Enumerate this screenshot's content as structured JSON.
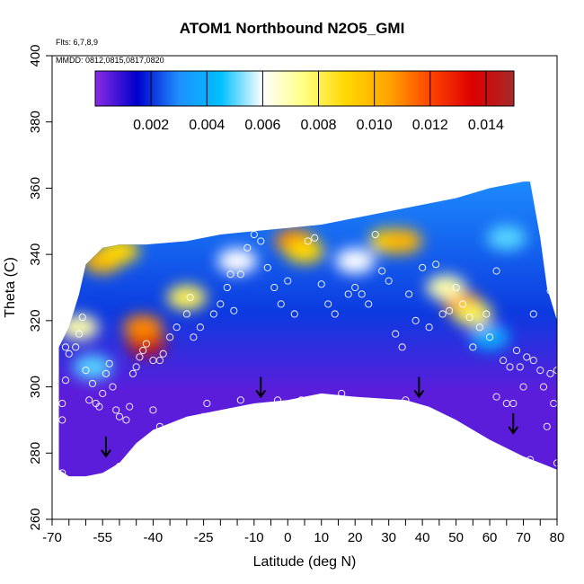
{
  "chart_data": {
    "type": "heatmap",
    "title": "ATOM1 Northbound N2O5_GMI",
    "notes": {
      "flights": "Flts: 6,7,8,9",
      "dates": "MMDD: 0812,0815,0817,0820"
    },
    "xlabel": "Latitude (deg N)",
    "ylabel": "Theta (C)",
    "xlim": [
      -70,
      80
    ],
    "ylim": [
      260,
      400
    ],
    "x_ticks": [
      -70,
      -55,
      -40,
      -25,
      -10,
      0,
      10,
      20,
      30,
      40,
      50,
      60,
      70,
      80
    ],
    "x_minor_ticks": [
      -65,
      -60,
      -50,
      -45,
      -35,
      -30,
      -20,
      -15,
      -5,
      5,
      15,
      25,
      35,
      45,
      55,
      65,
      75
    ],
    "y_ticks": [
      260,
      280,
      300,
      320,
      340,
      360,
      380,
      400
    ],
    "grid": false,
    "colorbar": {
      "placement": "top",
      "range": [
        0.0,
        0.015
      ],
      "tick_values": [
        0.002,
        0.004,
        0.006,
        0.008,
        0.01,
        0.012,
        0.014
      ],
      "tick_labels": [
        "0.002",
        "0.004",
        "0.006",
        "0.008",
        "0.010",
        "0.012",
        "0.014"
      ],
      "colors": [
        "#8a2be2",
        "#0000cc",
        "#1e90ff",
        "#00bfff",
        "#ffffff",
        "#ffff80",
        "#ffd700",
        "#ffa500",
        "#ff4500",
        "#dd0000",
        "#a52a2a"
      ]
    },
    "domain_outline": [
      [
        -68,
        275
      ],
      [
        -68,
        312
      ],
      [
        -65,
        318
      ],
      [
        -62,
        328
      ],
      [
        -60,
        337
      ],
      [
        -55,
        342
      ],
      [
        -50,
        343
      ],
      [
        -42,
        343
      ],
      [
        -30,
        344
      ],
      [
        -20,
        346
      ],
      [
        -10,
        347
      ],
      [
        0,
        348
      ],
      [
        10,
        349
      ],
      [
        20,
        351
      ],
      [
        30,
        353
      ],
      [
        40,
        355
      ],
      [
        50,
        357
      ],
      [
        60,
        360
      ],
      [
        70,
        362
      ],
      [
        72,
        362
      ],
      [
        75,
        345
      ],
      [
        77,
        330
      ],
      [
        80,
        320
      ],
      [
        80,
        275
      ],
      [
        75,
        277
      ],
      [
        70,
        279
      ],
      [
        60,
        284
      ],
      [
        50,
        290
      ],
      [
        42,
        294
      ],
      [
        35,
        296
      ],
      [
        20,
        297
      ],
      [
        10,
        298
      ],
      [
        0,
        296
      ],
      [
        -10,
        295
      ],
      [
        -20,
        293
      ],
      [
        -30,
        291
      ],
      [
        -40,
        287
      ],
      [
        -45,
        283
      ],
      [
        -50,
        277
      ],
      [
        -55,
        274
      ],
      [
        -60,
        273
      ],
      [
        -65,
        273
      ]
    ],
    "hotspots": [
      {
        "lat": -42,
        "theta": 313,
        "value": 0.014
      },
      {
        "lat": -43,
        "theta": 318,
        "value": 0.011
      },
      {
        "lat": -55,
        "theta": 338,
        "value": 0.01
      },
      {
        "lat": -50,
        "theta": 341,
        "value": 0.009
      },
      {
        "lat": -62,
        "theta": 318,
        "value": 0.007
      },
      {
        "lat": 2,
        "theta": 344,
        "value": 0.011
      },
      {
        "lat": 5,
        "theta": 341,
        "value": 0.009
      },
      {
        "lat": 30,
        "theta": 344,
        "value": 0.009
      },
      {
        "lat": 34,
        "theta": 344,
        "value": 0.01
      },
      {
        "lat": 52,
        "theta": 325,
        "value": 0.011
      },
      {
        "lat": 55,
        "theta": 322,
        "value": 0.008
      },
      {
        "lat": 47,
        "theta": 330,
        "value": 0.007
      },
      {
        "lat": -30,
        "theta": 327,
        "value": 0.008
      },
      {
        "lat": -15,
        "theta": 338,
        "value": 0.006
      },
      {
        "lat": 20,
        "theta": 338,
        "value": 0.006
      },
      {
        "lat": 65,
        "theta": 345,
        "value": 0.005
      },
      {
        "lat": -58,
        "theta": 306,
        "value": 0.005
      },
      {
        "lat": 60,
        "theta": 315,
        "value": 0.004
      }
    ],
    "background_upper": 0.003,
    "background_lower": 0.0005,
    "observations": [
      [
        -67,
        274
      ],
      [
        -67,
        290
      ],
      [
        -67,
        295
      ],
      [
        -66,
        302
      ],
      [
        -66,
        312
      ],
      [
        -65,
        310
      ],
      [
        -63,
        312
      ],
      [
        -62,
        316
      ],
      [
        -61,
        321
      ],
      [
        -60,
        305
      ],
      [
        -59,
        296
      ],
      [
        -58,
        301
      ],
      [
        -57,
        295
      ],
      [
        -56,
        294
      ],
      [
        -55,
        298
      ],
      [
        -54,
        304
      ],
      [
        -53,
        307
      ],
      [
        -52,
        300
      ],
      [
        -51,
        293
      ],
      [
        -50,
        291
      ],
      [
        -50,
        276
      ],
      [
        -48,
        277
      ],
      [
        -48,
        290
      ],
      [
        -47,
        294
      ],
      [
        -46,
        304
      ],
      [
        -45,
        306
      ],
      [
        -44,
        309
      ],
      [
        -43,
        311
      ],
      [
        -42,
        313
      ],
      [
        -40,
        308
      ],
      [
        -40,
        293
      ],
      [
        -38,
        308
      ],
      [
        -37,
        310
      ],
      [
        -38,
        288
      ],
      [
        -35,
        315
      ],
      [
        -33,
        318
      ],
      [
        -30,
        322
      ],
      [
        -29,
        327
      ],
      [
        -28,
        315
      ],
      [
        -26,
        318
      ],
      [
        -25,
        291
      ],
      [
        -24,
        295
      ],
      [
        -22,
        322
      ],
      [
        -20,
        325
      ],
      [
        -18,
        330
      ],
      [
        -17,
        334
      ],
      [
        -16,
        323
      ],
      [
        -14,
        334
      ],
      [
        -14,
        296
      ],
      [
        -12,
        342
      ],
      [
        -10,
        346
      ],
      [
        -8,
        344
      ],
      [
        -6,
        336
      ],
      [
        -4,
        330
      ],
      [
        -3,
        296
      ],
      [
        -2,
        325
      ],
      [
        0,
        332
      ],
      [
        2,
        322
      ],
      [
        4,
        296
      ],
      [
        6,
        344
      ],
      [
        8,
        345
      ],
      [
        10,
        331
      ],
      [
        12,
        325
      ],
      [
        14,
        322
      ],
      [
        16,
        298
      ],
      [
        18,
        328
      ],
      [
        20,
        330
      ],
      [
        22,
        328
      ],
      [
        24,
        325
      ],
      [
        26,
        346
      ],
      [
        28,
        335
      ],
      [
        30,
        332
      ],
      [
        32,
        316
      ],
      [
        34,
        312
      ],
      [
        35,
        296
      ],
      [
        36,
        328
      ],
      [
        38,
        320
      ],
      [
        40,
        336
      ],
      [
        42,
        318
      ],
      [
        44,
        337
      ],
      [
        46,
        322
      ],
      [
        48,
        323
      ],
      [
        50,
        330
      ],
      [
        52,
        325
      ],
      [
        54,
        321
      ],
      [
        55,
        312
      ],
      [
        57,
        318
      ],
      [
        59,
        322
      ],
      [
        60,
        315
      ],
      [
        62,
        335
      ],
      [
        64,
        308
      ],
      [
        65,
        295
      ],
      [
        66,
        306
      ],
      [
        68,
        311
      ],
      [
        69,
        306
      ],
      [
        70,
        300
      ],
      [
        71,
        309
      ],
      [
        72,
        278
      ],
      [
        73,
        308
      ],
      [
        74,
        276
      ],
      [
        75,
        305
      ],
      [
        76,
        300
      ],
      [
        77,
        288
      ],
      [
        78,
        304
      ],
      [
        78,
        329
      ],
      [
        79,
        295
      ],
      [
        80,
        277
      ],
      [
        80,
        305
      ],
      [
        77,
        345
      ],
      [
        76,
        360
      ],
      [
        73,
        322
      ],
      [
        67,
        295
      ],
      [
        62,
        297
      ]
    ],
    "arrows": [
      {
        "lat": -54,
        "theta": 285
      },
      {
        "lat": -8,
        "theta": 303
      },
      {
        "lat": 39,
        "theta": 303
      },
      {
        "lat": 67,
        "theta": 292
      }
    ]
  }
}
